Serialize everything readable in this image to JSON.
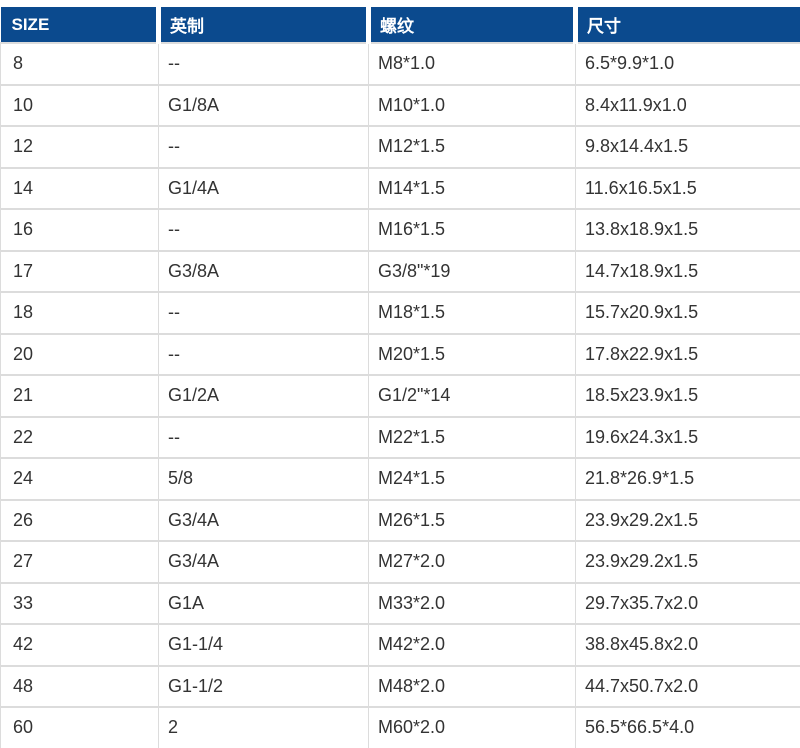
{
  "table": {
    "columns": [
      {
        "key": "size",
        "label": "SIZE"
      },
      {
        "key": "imperial",
        "label": "英制"
      },
      {
        "key": "thread",
        "label": "螺纹"
      },
      {
        "key": "dimensions",
        "label": "尺寸"
      }
    ],
    "rows": [
      [
        "8",
        "--",
        "M8*1.0",
        "6.5*9.9*1.0"
      ],
      [
        "10",
        "G1/8A",
        "M10*1.0",
        "8.4x11.9x1.0"
      ],
      [
        "12",
        "--",
        "M12*1.5",
        "9.8x14.4x1.5"
      ],
      [
        "14",
        "G1/4A",
        "M14*1.5",
        "11.6x16.5x1.5"
      ],
      [
        "16",
        "--",
        "M16*1.5",
        "13.8x18.9x1.5"
      ],
      [
        "17",
        "G3/8A",
        "G3/8\"*19",
        "14.7x18.9x1.5"
      ],
      [
        "18",
        "--",
        "M18*1.5",
        "15.7x20.9x1.5"
      ],
      [
        "20",
        "--",
        "M20*1.5",
        "17.8x22.9x1.5"
      ],
      [
        "21",
        "G1/2A",
        "G1/2\"*14",
        "18.5x23.9x1.5"
      ],
      [
        "22",
        "--",
        "M22*1.5",
        "19.6x24.3x1.5"
      ],
      [
        "24",
        "5/8",
        "M24*1.5",
        "21.8*26.9*1.5"
      ],
      [
        "26",
        "G3/4A",
        "M26*1.5",
        "23.9x29.2x1.5"
      ],
      [
        "27",
        "G3/4A",
        "M27*2.0",
        "23.9x29.2x1.5"
      ],
      [
        "33",
        "G1A",
        "M33*2.0",
        "29.7x35.7x2.0"
      ],
      [
        "42",
        "G1-1/4",
        "M42*2.0",
        "38.8x45.8x2.0"
      ],
      [
        "48",
        "G1-1/2",
        "M48*2.0",
        "44.7x50.7x2.0"
      ],
      [
        "60",
        "2",
        "M60*2.0",
        "56.5*66.5*4.0"
      ]
    ]
  },
  "colors": {
    "header_bg": "#0b4a8e",
    "header_text": "#ffffff",
    "body_text": "#333333",
    "row_border": "#dcdcdc"
  }
}
